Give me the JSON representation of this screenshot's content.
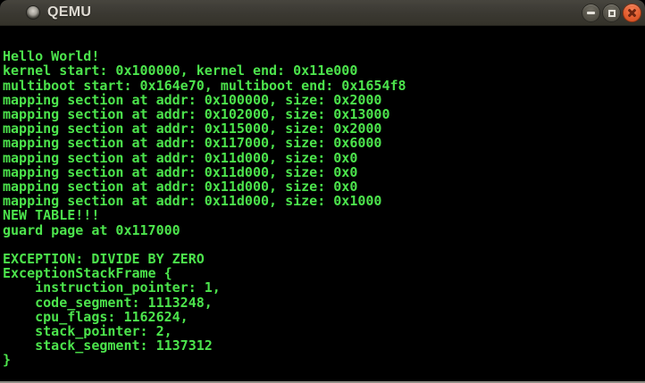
{
  "window": {
    "title": "QEMU",
    "titlebar_color": "#3c3a34",
    "close_button_color": "#e25d2f",
    "icons": {
      "app_icon": "qemu-sphere-circle",
      "minimize": "minus-bar",
      "maximize": "square-outline",
      "close": "cross"
    }
  },
  "terminal": {
    "background_color": "#000000",
    "text_color": "#4ce44c",
    "lines": [
      "",
      "Hello World!",
      "kernel start: 0x100000, kernel end: 0x11e000",
      "multiboot start: 0x164e70, multiboot end: 0x1654f8",
      "mapping section at addr: 0x100000, size: 0x2000",
      "mapping section at addr: 0x102000, size: 0x13000",
      "mapping section at addr: 0x115000, size: 0x2000",
      "mapping section at addr: 0x117000, size: 0x6000",
      "mapping section at addr: 0x11d000, size: 0x0",
      "mapping section at addr: 0x11d000, size: 0x0",
      "mapping section at addr: 0x11d000, size: 0x0",
      "mapping section at addr: 0x11d000, size: 0x1000",
      "NEW TABLE!!!",
      "guard page at 0x117000",
      "",
      "EXCEPTION: DIVIDE BY ZERO",
      "ExceptionStackFrame {",
      "    instruction_pointer: 1,",
      "    code_segment: 1113248,",
      "    cpu_flags: 1162624,",
      "    stack_pointer: 2,",
      "    stack_segment: 1137312",
      "}"
    ]
  }
}
